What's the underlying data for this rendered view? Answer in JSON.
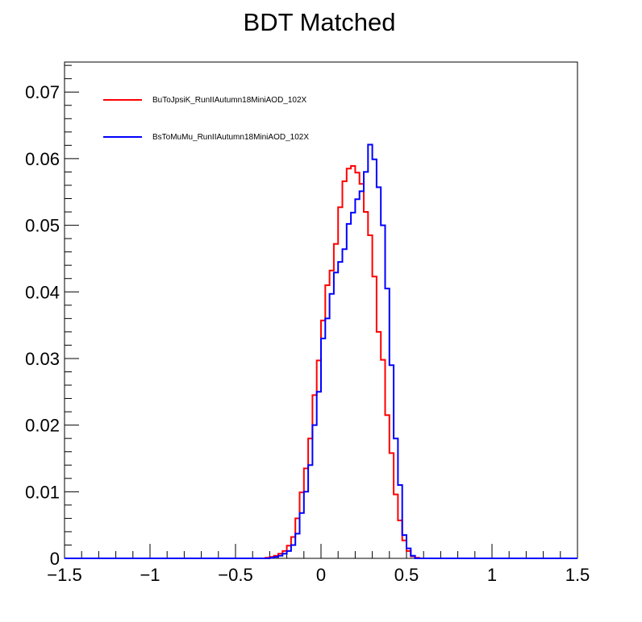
{
  "chart_data": {
    "type": "line",
    "title": "BDT Matched",
    "xlabel": "",
    "ylabel": "",
    "xlim": [
      -1.5,
      1.5
    ],
    "ylim": [
      0,
      0.0745
    ],
    "grid": false,
    "legend_position": "top-left",
    "x_ticks": [
      "−1.5",
      "−1",
      "−0.5",
      "0",
      "0.5",
      "1",
      "1.5"
    ],
    "x_tick_values": [
      -1.5,
      -1,
      -0.5,
      0,
      0.5,
      1,
      1.5
    ],
    "y_ticks": [
      "0",
      "0.01",
      "0.02",
      "0.03",
      "0.04",
      "0.05",
      "0.06",
      "0.07"
    ],
    "y_tick_values": [
      0,
      0.01,
      0.02,
      0.03,
      0.04,
      0.05,
      0.06,
      0.07
    ],
    "bin_edges_start": -0.325,
    "bin_width": 0.025,
    "series": [
      {
        "name": "BuToJpsiK_RunIIAutumn18MiniAOD_102X",
        "color": "#ff0000",
        "values": [
          0.0001,
          0.0002,
          0.0004,
          0.0007,
          0.0011,
          0.0019,
          0.0032,
          0.006,
          0.0099,
          0.0135,
          0.018,
          0.0245,
          0.0297,
          0.0357,
          0.041,
          0.0432,
          0.0472,
          0.0527,
          0.0566,
          0.0585,
          0.0589,
          0.0579,
          0.0562,
          0.052,
          0.0485,
          0.0423,
          0.034,
          0.0298,
          0.0215,
          0.0158,
          0.0096,
          0.0057,
          0.0027,
          0.0011,
          0.0003,
          0.0001
        ]
      },
      {
        "name": "BsToMuMu_RunIIAutumn18MiniAOD_102X",
        "color": "#0000ff",
        "values": [
          0.0,
          0.0001,
          0.0002,
          0.0004,
          0.0007,
          0.0011,
          0.002,
          0.0037,
          0.0068,
          0.01,
          0.014,
          0.02,
          0.025,
          0.033,
          0.036,
          0.0397,
          0.0429,
          0.0445,
          0.0464,
          0.0502,
          0.0519,
          0.0539,
          0.0551,
          0.058,
          0.0621,
          0.0599,
          0.0557,
          0.05,
          0.0405,
          0.029,
          0.018,
          0.011,
          0.0035,
          0.0015,
          0.0004,
          0.0
        ]
      }
    ]
  }
}
